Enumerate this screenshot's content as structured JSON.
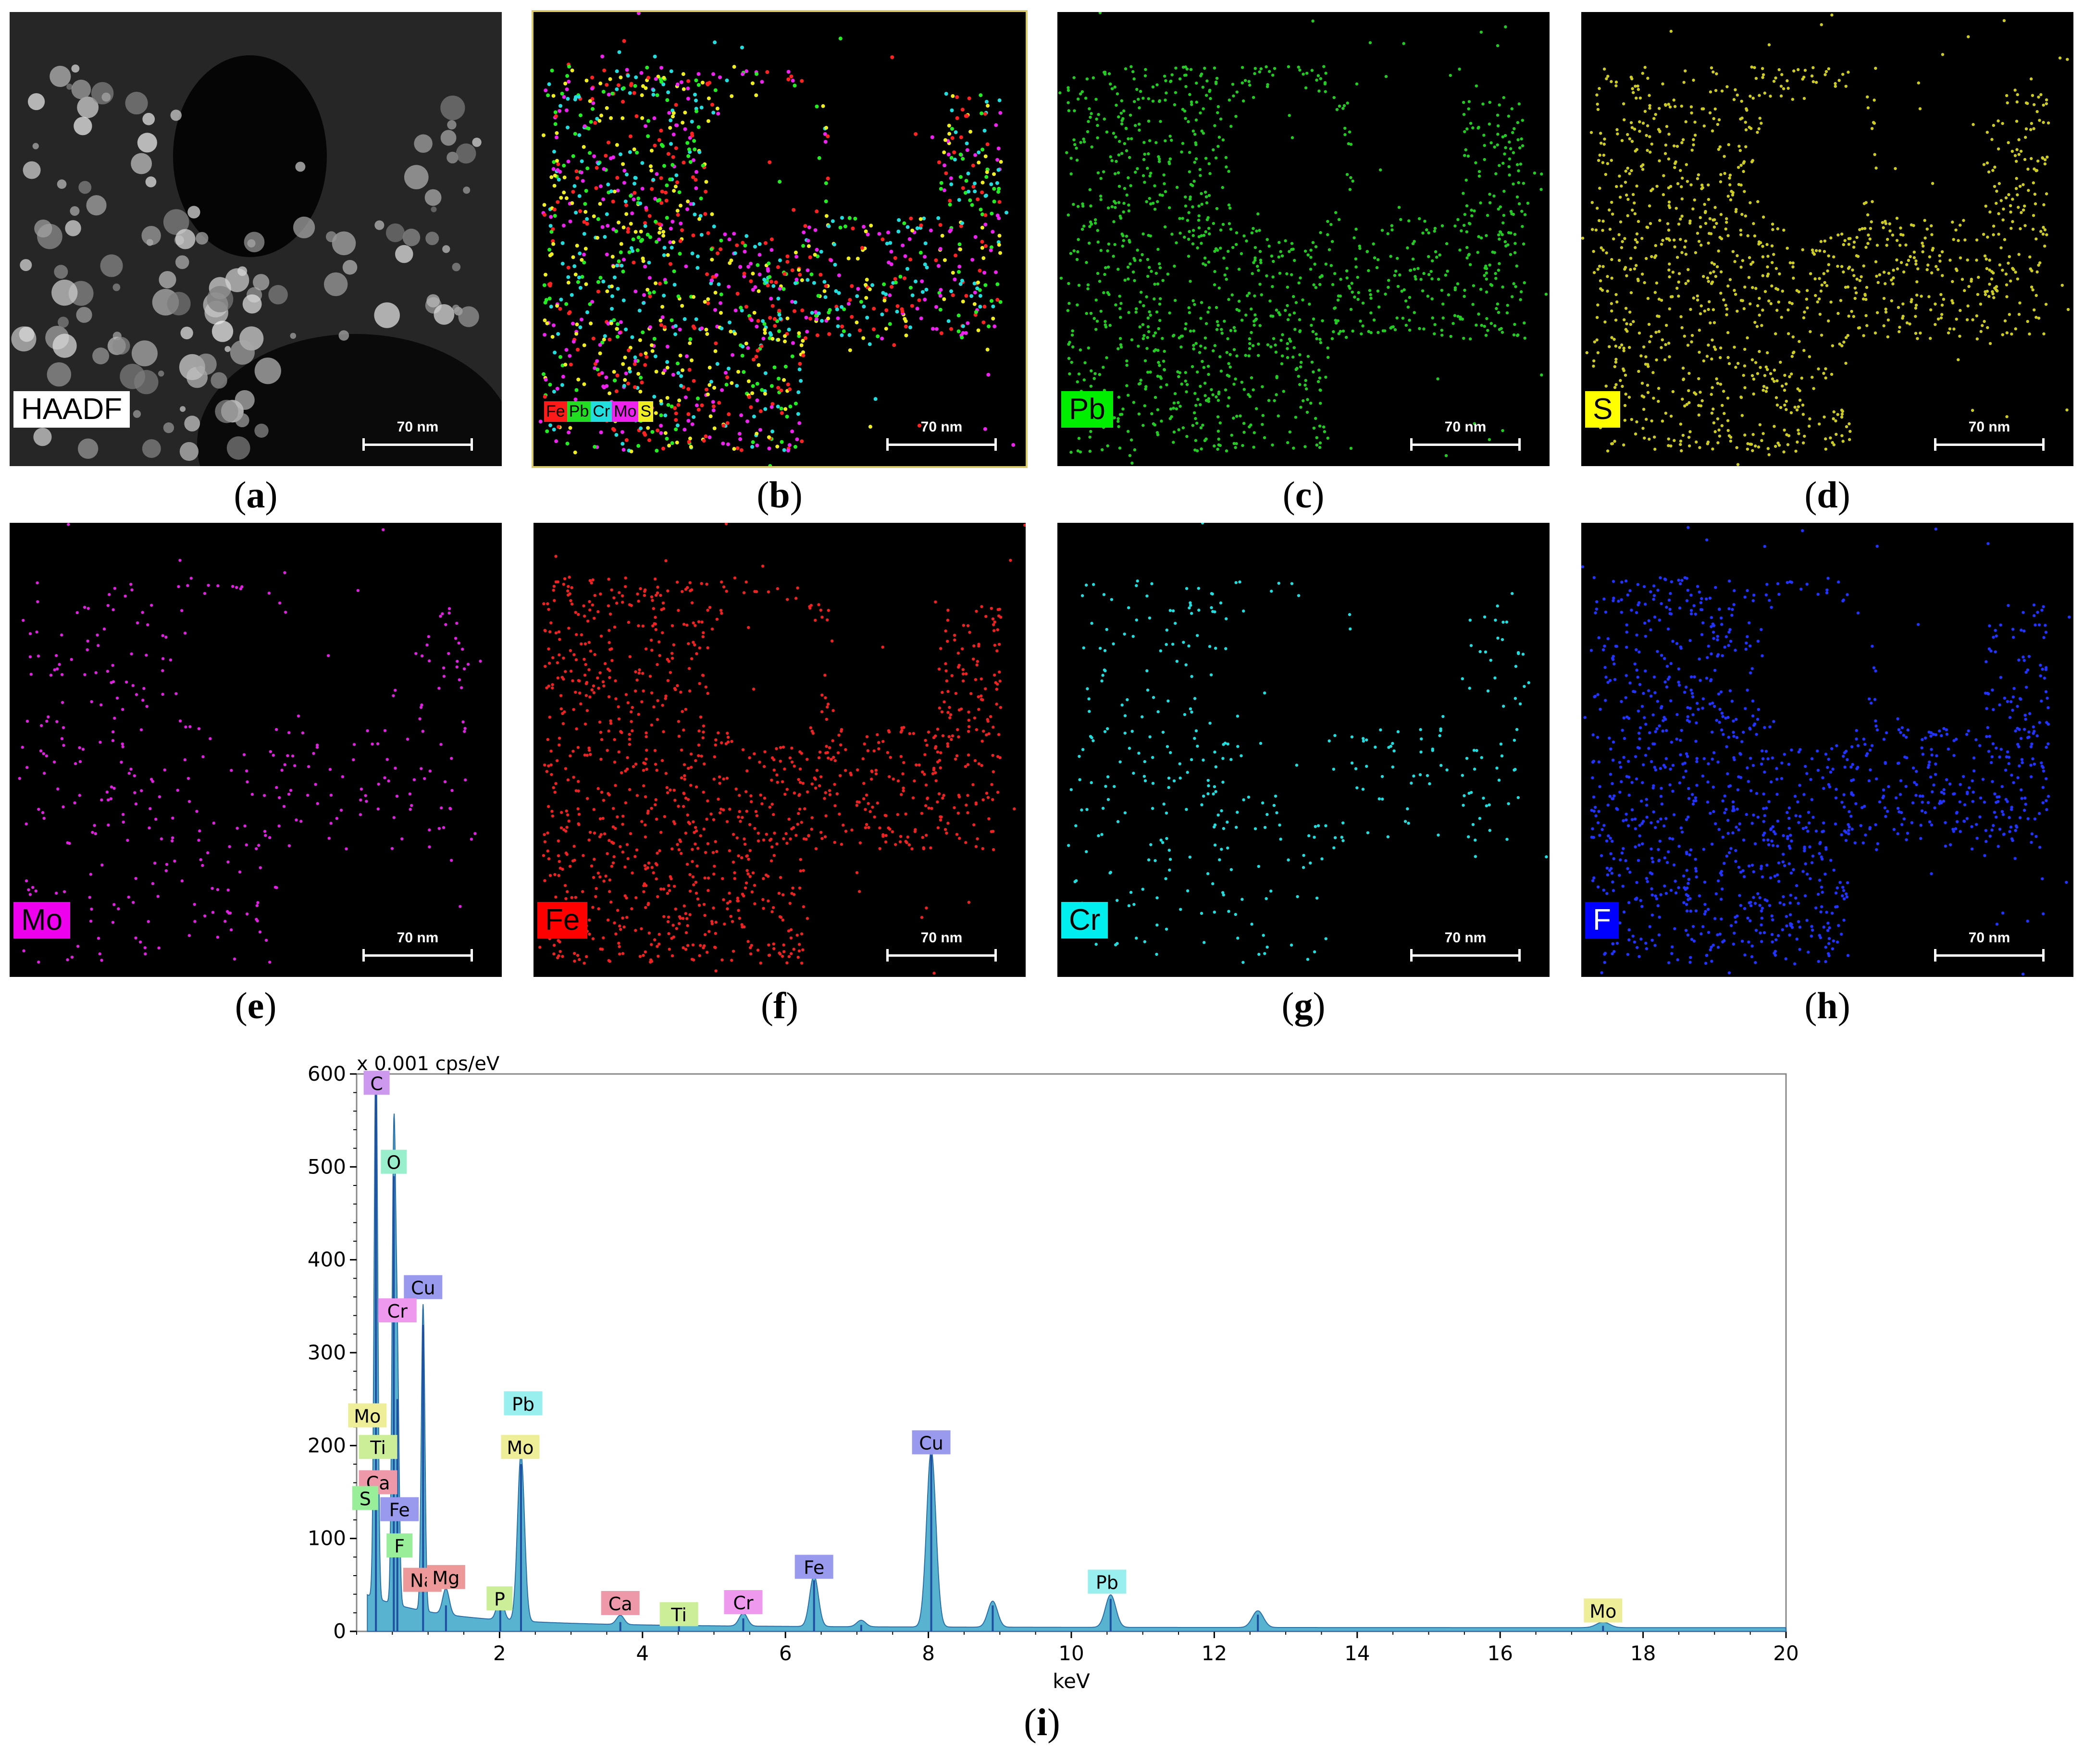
{
  "panels": [
    {
      "id": "a",
      "caption": "a",
      "label": "HAADF",
      "label_bg": "#ffffff",
      "label_fg": "#000000",
      "scale": "70 nm",
      "kind": "haadf"
    },
    {
      "id": "b",
      "caption": "b",
      "label": "",
      "scale": "70 nm",
      "kind": "overlay",
      "legend": [
        {
          "text": "Fe",
          "bg": "#ff1a1a"
        },
        {
          "text": "Pb",
          "bg": "#22dd22"
        },
        {
          "text": "Cr",
          "bg": "#22dddd"
        },
        {
          "text": "Mo",
          "bg": "#ee22ee"
        },
        {
          "text": "S",
          "bg": "#eeee22"
        }
      ]
    },
    {
      "id": "c",
      "caption": "c",
      "label": "Pb",
      "label_bg": "#00ee00",
      "label_fg": "#000000",
      "scale": "70 nm",
      "kind": "map",
      "color": "#22cc22"
    },
    {
      "id": "d",
      "caption": "d",
      "label": "S",
      "label_bg": "#ffff00",
      "label_fg": "#000000",
      "scale": "70 nm",
      "kind": "map",
      "color": "#cccc22"
    },
    {
      "id": "e",
      "caption": "e",
      "label": "Mo",
      "label_bg": "#ee00ee",
      "label_fg": "#000000",
      "scale": "70 nm",
      "kind": "map",
      "color": "#dd22dd"
    },
    {
      "id": "f",
      "caption": "f",
      "label": "Fe",
      "label_bg": "#ff0000",
      "label_fg": "#000000",
      "scale": "70 nm",
      "kind": "map",
      "color": "#ee2222"
    },
    {
      "id": "g",
      "caption": "g",
      "label": "Cr",
      "label_bg": "#00eeee",
      "label_fg": "#000000",
      "scale": "70 nm",
      "kind": "map",
      "color": "#22dddd"
    },
    {
      "id": "h",
      "caption": "h",
      "label": "F",
      "label_bg": "#0000ff",
      "label_fg": "#ffffff",
      "scale": "70 nm",
      "kind": "map",
      "color": "#2233ff"
    }
  ],
  "chart_data": {
    "type": "line",
    "title": "",
    "unit_label": "x 0.001 cps/eV",
    "xlabel": "keV",
    "ylabel": "",
    "xlim": [
      0,
      20
    ],
    "ylim": [
      0,
      600
    ],
    "xticks": [
      2,
      4,
      6,
      8,
      10,
      12,
      14,
      16,
      18,
      20
    ],
    "yticks": [
      0,
      100,
      200,
      300,
      400,
      500,
      600
    ],
    "caption": "i",
    "peaks": [
      {
        "x": 0.27,
        "y": 600
      },
      {
        "x": 0.52,
        "y": 490
      },
      {
        "x": 0.57,
        "y": 250
      },
      {
        "x": 0.93,
        "y": 330
      },
      {
        "x": 1.25,
        "y": 28
      },
      {
        "x": 2.01,
        "y": 25
      },
      {
        "x": 2.3,
        "y": 180
      },
      {
        "x": 3.69,
        "y": 10
      },
      {
        "x": 4.51,
        "y": 6
      },
      {
        "x": 5.41,
        "y": 14
      },
      {
        "x": 6.4,
        "y": 55
      },
      {
        "x": 7.06,
        "y": 7
      },
      {
        "x": 8.04,
        "y": 190
      },
      {
        "x": 8.9,
        "y": 28
      },
      {
        "x": 10.55,
        "y": 35
      },
      {
        "x": 12.61,
        "y": 18
      },
      {
        "x": 17.44,
        "y": 6
      }
    ],
    "labels": [
      {
        "text": "C",
        "x": 0.28,
        "y": 590,
        "color": "#cc99ee"
      },
      {
        "text": "O",
        "x": 0.52,
        "y": 505,
        "color": "#99eecc"
      },
      {
        "text": "Cu",
        "x": 0.93,
        "y": 370,
        "color": "#9999ee"
      },
      {
        "text": "Cr",
        "x": 0.57,
        "y": 345,
        "color": "#ee99ee"
      },
      {
        "text": "Pb",
        "x": 2.33,
        "y": 245,
        "color": "#99eeee"
      },
      {
        "text": "Mo",
        "x": 0.15,
        "y": 232,
        "color": "#eeee99"
      },
      {
        "text": "Ti",
        "x": 0.3,
        "y": 198,
        "color": "#ccee99"
      },
      {
        "text": "Mo",
        "x": 2.29,
        "y": 198,
        "color": "#eeee99"
      },
      {
        "text": "Cu",
        "x": 8.04,
        "y": 203,
        "color": "#9999ee"
      },
      {
        "text": "Ca",
        "x": 0.3,
        "y": 160,
        "color": "#ee99aa"
      },
      {
        "text": "Fe",
        "x": 0.6,
        "y": 131,
        "color": "#9999ee"
      },
      {
        "text": "S",
        "x": 0.12,
        "y": 143,
        "color": "#99ee99"
      },
      {
        "text": "F",
        "x": 0.6,
        "y": 92,
        "color": "#99ee99"
      },
      {
        "text": "Fe",
        "x": 6.4,
        "y": 69,
        "color": "#9999ee"
      },
      {
        "text": "Na",
        "x": 0.92,
        "y": 55,
        "color": "#ee9999"
      },
      {
        "text": "Mg",
        "x": 1.25,
        "y": 58,
        "color": "#ee9999"
      },
      {
        "text": "Pb",
        "x": 10.5,
        "y": 53,
        "color": "#99eeee"
      },
      {
        "text": "P",
        "x": 2.0,
        "y": 35,
        "color": "#ccee99"
      },
      {
        "text": "Ca",
        "x": 3.69,
        "y": 30,
        "color": "#ee99aa"
      },
      {
        "text": "Cr",
        "x": 5.41,
        "y": 31,
        "color": "#ee99ee"
      },
      {
        "text": "Ti",
        "x": 4.51,
        "y": 18,
        "color": "#ccee99"
      },
      {
        "text": "Mo",
        "x": 17.44,
        "y": 22,
        "color": "#eeee99"
      }
    ]
  }
}
